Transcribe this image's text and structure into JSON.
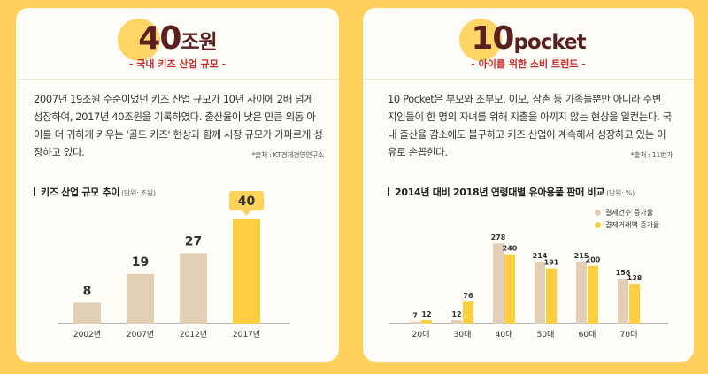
{
  "left": {
    "headline_number": "40",
    "headline_unit": "조원",
    "subtitle": "- 국내 키즈 산업 규모 -",
    "paragraph": "2007년 19조원 수준이었던 키즈 산업 규모가 10년 사이에 2배 넘게 성장하여, 2017년 40조원을 기록하였다. 출산율이 낮은 만큼 외동 아이를 더 귀하게 키우는 '골드 키즈' 현상과 함께 시장 규모가 가파르게 성장하고 있다.",
    "source": "*출처 : KT경제경영연구소",
    "chart_title": "키즈 산업 규모 추이",
    "chart_unit": "(단위: 조원)"
  },
  "right": {
    "headline_number": "10",
    "headline_unit": "pocket",
    "subtitle": "- 아이를 위한 소비 트렌드 -",
    "paragraph": "10 Pocket은 부모와 조부모, 이모, 삼촌 등 가족들뿐만 아니라 주변 지인들이 한 명의 자녀를 위해 지출을 아끼지 않는 현상을 일컫는다. 국내 출산율 감소에도 불구하고 키즈 산업이 계속해서 성장하고 있는 이유로 손꼽힌다.",
    "source": "*출처 : 11번가",
    "chart_title": "2014년 대비 2018년 연령대별 유아용품 판매 비교",
    "chart_unit": "(단위: %)"
  },
  "colors": {
    "beige": "#e3cfb6",
    "yellow": "#ffcf42",
    "yellow_label": "#ffd25a",
    "maroon": "#5a1f1f",
    "red": "#c72b2b"
  },
  "chart_data": [
    {
      "type": "bar",
      "title": "키즈 산업 규모 추이",
      "unit": "조원",
      "categories": [
        "2002년",
        "2007년",
        "2012년",
        "2017년"
      ],
      "values": [
        8,
        19,
        27,
        40
      ],
      "highlight_index": 3,
      "ylim": [
        0,
        40
      ]
    },
    {
      "type": "bar",
      "title": "2014년 대비 2018년 연령대별 유아용품 판매 비교",
      "unit": "%",
      "categories": [
        "20대",
        "30대",
        "40대",
        "50대",
        "60대",
        "70대"
      ],
      "series": [
        {
          "name": "결제건수 증가율",
          "values": [
            7,
            12,
            278,
            214,
            215,
            156
          ]
        },
        {
          "name": "결제거래액 증가율",
          "values": [
            12,
            76,
            240,
            191,
            200,
            138
          ]
        }
      ],
      "ylim": [
        0,
        300
      ],
      "legend": "top-right"
    }
  ]
}
